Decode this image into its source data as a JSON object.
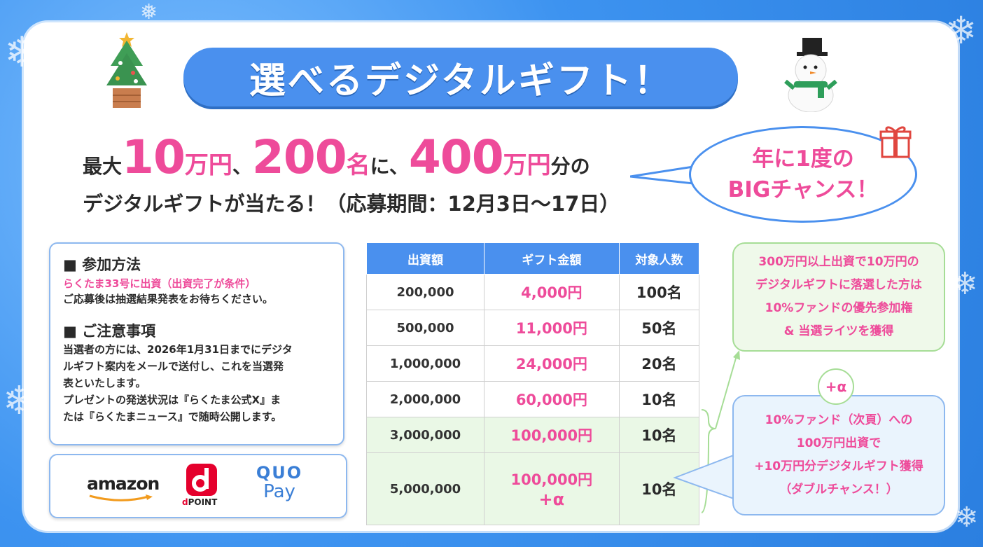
{
  "title": "選べるデジタルギフト！",
  "headline": {
    "p1": "最大",
    "amount1": "10",
    "unit1": "万円",
    "sep1": "、",
    "count": "200",
    "unit2": "名",
    "sep2": "に、",
    "amount2": "400",
    "unit3": "万円",
    "tail": "分の"
  },
  "subline": "デジタルギフトが当たる！（応募期間：12月3日～17日）",
  "bubble": {
    "line1": "年に1度の",
    "line2": "BIGチャンス！"
  },
  "info": {
    "method_heading": "■ 参加方法",
    "method_condition": "らくたま33号に出資（出資完了が条件）",
    "method_note": "ご応募後は抽選結果発表をお待ちください。",
    "notice_heading": "■ ご注意事項",
    "notice_lines": [
      "当選者の方には、2026年1月31日までにデジタ",
      "ルギフト案内をメールで送付し、これを当選発",
      "表といたします。",
      "プレゼントの発送状況は『らくたま公式X』ま",
      "たは『らくたまニュース』で随時公開します。"
    ]
  },
  "logos": {
    "amazon": "amazon",
    "dpoint": "POINT",
    "dpoint_prefix": "d",
    "quo_top": "QUO",
    "quo_bottom": "Pay"
  },
  "table": {
    "headers": [
      "出資額",
      "ギフト金額",
      "対象人数"
    ],
    "rows": [
      {
        "amount": "200,000",
        "gift": "4,000円",
        "people": "100名"
      },
      {
        "amount": "500,000",
        "gift": "11,000円",
        "people": "50名"
      },
      {
        "amount": "1,000,000",
        "gift": "24,000円",
        "people": "20名"
      },
      {
        "amount": "2,000,000",
        "gift": "60,000円",
        "people": "10名"
      },
      {
        "amount": "3,000,000",
        "gift": "100,000円",
        "people": "10名"
      },
      {
        "amount": "5,000,000",
        "gift": "100,000円",
        "gift_extra": "+α",
        "people": "10名"
      }
    ]
  },
  "green_box": {
    "lines": [
      "300万円以上出資で10万円の",
      "デジタルギフトに落選した方は",
      "10%ファンドの優先参加権",
      "& 当選ライツを獲得"
    ]
  },
  "plus_alpha": "+α",
  "blue_box": {
    "lines": [
      "10%ファンド（次頁）への",
      "100万円出資で",
      "+10万円分デジタルギフト獲得",
      "（ダブルチャンス！）"
    ]
  },
  "colors": {
    "accent_blue": "#4a90ee",
    "accent_pink": "#ee4b9a",
    "green": "#a6dd96"
  }
}
